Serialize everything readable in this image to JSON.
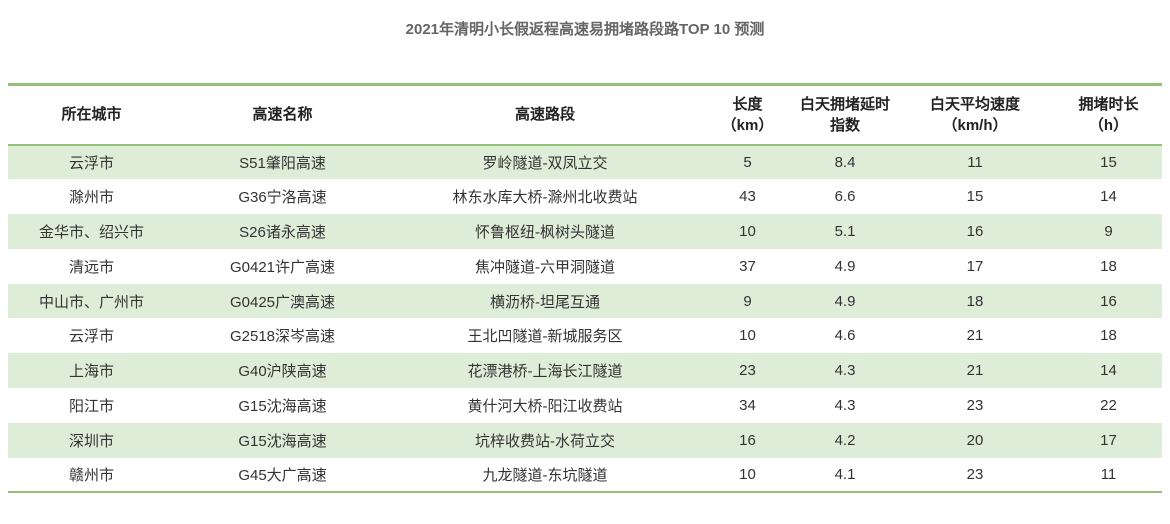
{
  "title": "2021年清明小长假返程高速易拥堵路段路TOP 10 预测",
  "colors": {
    "accent_green": "#92c177",
    "row_stripe_green": "#deedd8",
    "title_gray": "#666666",
    "body_text": "#333333"
  },
  "table": {
    "columns": [
      {
        "label": "所在城市",
        "sub": ""
      },
      {
        "label": "高速名称",
        "sub": ""
      },
      {
        "label": "高速路段",
        "sub": ""
      },
      {
        "label": "长度",
        "sub": "（km）"
      },
      {
        "label": "白天拥堵延时",
        "sub": "指数"
      },
      {
        "label": "白天平均速度",
        "sub": "（km/h）"
      },
      {
        "label": "拥堵时长",
        "sub": "（h）"
      }
    ],
    "rows": [
      [
        "云浮市",
        "S51肇阳高速",
        "罗岭隧道-双凤立交",
        "5",
        "8.4",
        "11",
        "15"
      ],
      [
        "滁州市",
        "G36宁洛高速",
        "林东水库大桥-滁州北收费站",
        "43",
        "6.6",
        "15",
        "14"
      ],
      [
        "金华市、绍兴市",
        "S26诸永高速",
        "怀鲁枢纽-枫树头隧道",
        "10",
        "5.1",
        "16",
        "9"
      ],
      [
        "清远市",
        "G0421许广高速",
        "焦冲隧道-六甲洞隧道",
        "37",
        "4.9",
        "17",
        "18"
      ],
      [
        "中山市、广州市",
        "G0425广澳高速",
        "横沥桥-坦尾互通",
        "9",
        "4.9",
        "18",
        "16"
      ],
      [
        "云浮市",
        "G2518深岑高速",
        "王北凹隧道-新城服务区",
        "10",
        "4.6",
        "21",
        "18"
      ],
      [
        "上海市",
        "G40沪陕高速",
        "花漂港桥-上海长江隧道",
        "23",
        "4.3",
        "21",
        "14"
      ],
      [
        "阳江市",
        "G15沈海高速",
        "黄什河大桥-阳江收费站",
        "34",
        "4.3",
        "23",
        "22"
      ],
      [
        "深圳市",
        "G15沈海高速",
        "坑梓收费站-水荷立交",
        "16",
        "4.2",
        "20",
        "17"
      ],
      [
        "赣州市",
        "G45大广高速",
        "九龙隧道-东坑隧道",
        "10",
        "4.1",
        "23",
        "11"
      ]
    ]
  },
  "chart_data": {
    "type": "table",
    "title": "2021年清明小长假返程高速易拥堵路段路TOP 10 预测",
    "columns": [
      "所在城市",
      "高速名称",
      "高速路段",
      "长度（km）",
      "白天拥堵延时指数",
      "白天平均速度（km/h）",
      "拥堵时长（h）"
    ],
    "rows": [
      [
        "云浮市",
        "S51肇阳高速",
        "罗岭隧道-双凤立交",
        5,
        8.4,
        11,
        15
      ],
      [
        "滁州市",
        "G36宁洛高速",
        "林东水库大桥-滁州北收费站",
        43,
        6.6,
        15,
        14
      ],
      [
        "金华市、绍兴市",
        "S26诸永高速",
        "怀鲁枢纽-枫树头隧道",
        10,
        5.1,
        16,
        9
      ],
      [
        "清远市",
        "G0421许广高速",
        "焦冲隧道-六甲洞隧道",
        37,
        4.9,
        17,
        18
      ],
      [
        "中山市、广州市",
        "G0425广澳高速",
        "横沥桥-坦尾互通",
        9,
        4.9,
        18,
        16
      ],
      [
        "云浮市",
        "G2518深岑高速",
        "王北凹隧道-新城服务区",
        10,
        4.6,
        21,
        18
      ],
      [
        "上海市",
        "G40沪陕高速",
        "花漂港桥-上海长江隧道",
        23,
        4.3,
        21,
        14
      ],
      [
        "阳江市",
        "G15沈海高速",
        "黄什河大桥-阳江收费站",
        34,
        4.3,
        23,
        22
      ],
      [
        "深圳市",
        "G15沈海高速",
        "坑梓收费站-水荷立交",
        16,
        4.2,
        20,
        17
      ],
      [
        "赣州市",
        "G45大广高速",
        "九龙隧道-东坑隧道",
        10,
        4.1,
        23,
        11
      ]
    ],
    "layout": {
      "striped_rows": "odd rows light green",
      "rules": "green horizontal rules above header, below header, below last row"
    }
  }
}
